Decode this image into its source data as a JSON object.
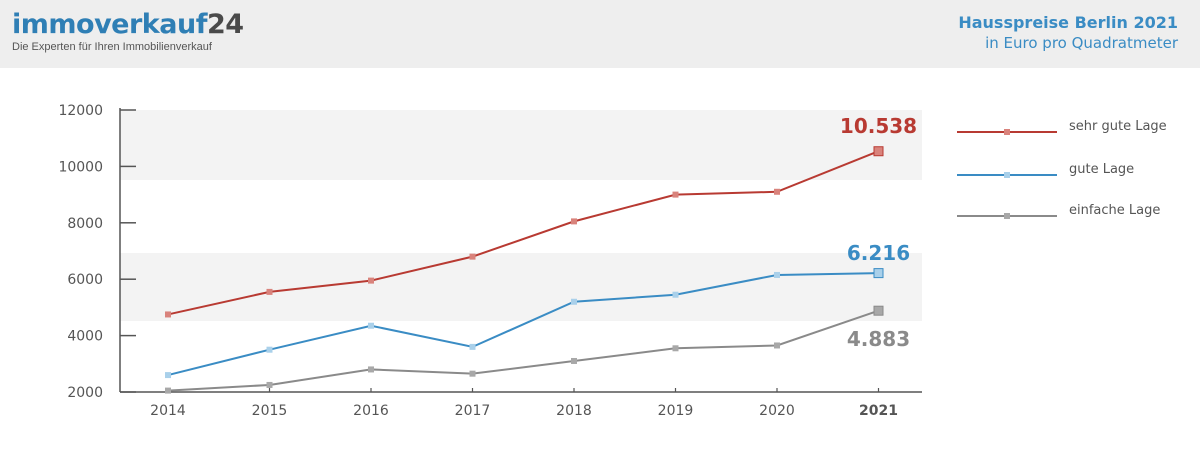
{
  "header": {
    "logo_part1": "immoverkauf",
    "logo_part2": "24",
    "tagline": "Die Experten für Ihren Immobilienverkauf",
    "title": "Hausspreise Berlin 2021",
    "subtitle": "in Euro pro Quadratmeter"
  },
  "chart_data": {
    "type": "line",
    "categories": [
      "2014",
      "2015",
      "2016",
      "2017",
      "2018",
      "2019",
      "2020",
      "2021"
    ],
    "y_ticks": [
      "12000",
      "10000",
      "8000",
      "6000",
      "4000",
      "2000"
    ],
    "ylim": [
      2000,
      12000
    ],
    "bold_category": "2021",
    "series": [
      {
        "name": "sehr gute Lage",
        "values": [
          4750,
          5550,
          5950,
          6800,
          8050,
          9000,
          9100,
          10538
        ],
        "color": "#b83a32",
        "marker_color": "#d9837c",
        "end_label": "10.538"
      },
      {
        "name": "gute Lage",
        "values": [
          2600,
          3500,
          4350,
          3600,
          5200,
          5450,
          6150,
          6216
        ],
        "color": "#3a8cc4",
        "marker_color": "#a9d0ea",
        "end_label": "6.216"
      },
      {
        "name": "einfache Lage",
        "values": [
          2050,
          2250,
          2800,
          2650,
          3100,
          3550,
          3650,
          4883
        ],
        "color": "#8a8a8a",
        "marker_color": "#a8a8a8",
        "end_label": "4.883"
      }
    ],
    "legend_position": "right"
  }
}
